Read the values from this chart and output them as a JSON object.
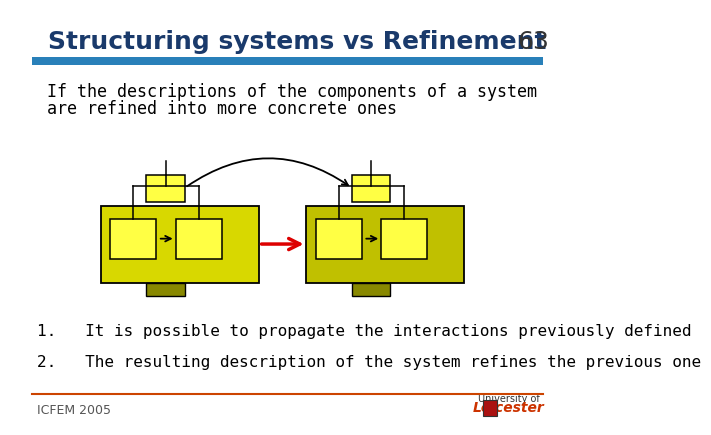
{
  "title": "Structuring systems vs Refinement",
  "slide_number": "63",
  "title_color": "#1a3a6b",
  "title_fontsize": 18,
  "blue_bar_color": "#2980b9",
  "bg_color": "#ffffff",
  "text1_line1": "If the descriptions of the components of a system",
  "text1_line2": "are refined into more concrete ones",
  "item1": "1.   It is possible to propagate the interactions previously defined",
  "item2": "2.   The resulting description of the system refines the previous one",
  "footer": "ICFEM 2005",
  "yellow_bright": "#ffff44",
  "yellow_outer_left": "#d8d800",
  "yellow_outer_right": "#c0c000",
  "olive_port": "#888800",
  "text_color": "#000000",
  "red_arrow": "#dd0000",
  "footer_line_color": "#cc4400"
}
